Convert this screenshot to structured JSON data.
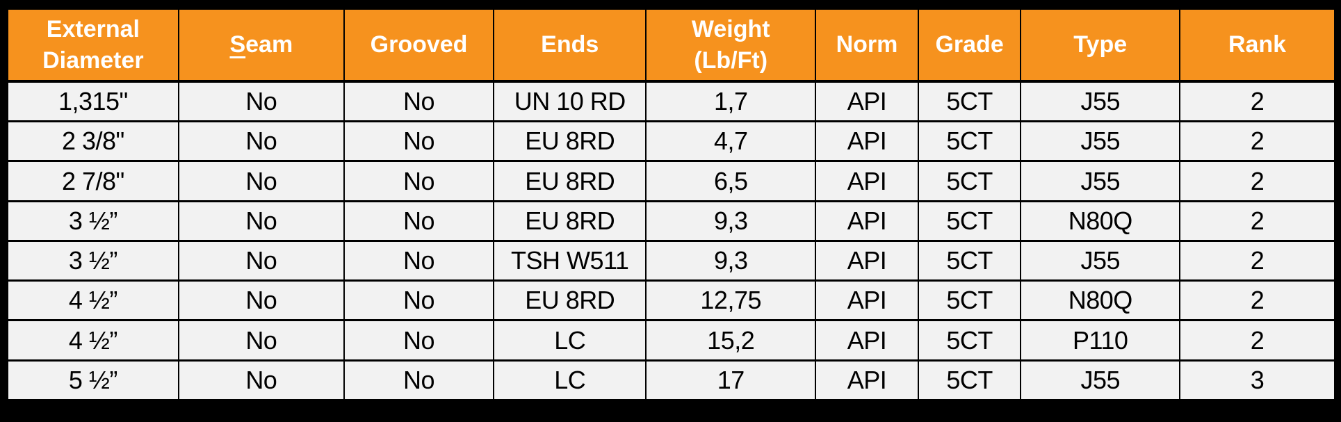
{
  "table": {
    "columns": [
      {
        "key": "external-diameter",
        "label": "External\nDiameter"
      },
      {
        "key": "seam",
        "label": "Seam",
        "label_first": "S",
        "label_rest": "eam"
      },
      {
        "key": "grooved",
        "label": "Grooved"
      },
      {
        "key": "ends",
        "label": "Ends"
      },
      {
        "key": "weight",
        "label": "Weight\n(Lb/Ft)"
      },
      {
        "key": "norm",
        "label": "Norm"
      },
      {
        "key": "grade",
        "label": "Grade"
      },
      {
        "key": "type",
        "label": "Type"
      },
      {
        "key": "rank",
        "label": "Rank"
      }
    ],
    "rows": [
      [
        "1,315\"",
        "No",
        "No",
        "UN 10 RD",
        "1,7",
        "API",
        "5CT",
        "J55",
        "2"
      ],
      [
        "2 3/8\"",
        "No",
        "No",
        "EU 8RD",
        "4,7",
        "API",
        "5CT",
        "J55",
        "2"
      ],
      [
        "2 7/8\"",
        "No",
        "No",
        "EU 8RD",
        "6,5",
        "API",
        "5CT",
        "J55",
        "2"
      ],
      [
        "3 ½”",
        "No",
        "No",
        "EU 8RD",
        "9,3",
        "API",
        "5CT",
        "N80Q",
        "2"
      ],
      [
        "3 ½”",
        "No",
        "No",
        "TSH W511",
        "9,3",
        "API",
        "5CT",
        "J55",
        "2"
      ],
      [
        "4 ½”",
        "No",
        "No",
        "EU 8RD",
        "12,75",
        "API",
        "5CT",
        "N80Q",
        "2"
      ],
      [
        "4 ½”",
        "No",
        "No",
        "LC",
        "15,2",
        "API",
        "5CT",
        "P110",
        "2"
      ],
      [
        "5 ½”",
        "No",
        "No",
        "LC",
        "17",
        "API",
        "5CT",
        "J55",
        "3"
      ]
    ],
    "colors": {
      "header_bg": "#F6921E",
      "header_text": "#FFFFFF",
      "row_bg": "#F2F2F2",
      "body_text": "#000000",
      "border": "#000000",
      "frame_bg": "#000000"
    }
  }
}
